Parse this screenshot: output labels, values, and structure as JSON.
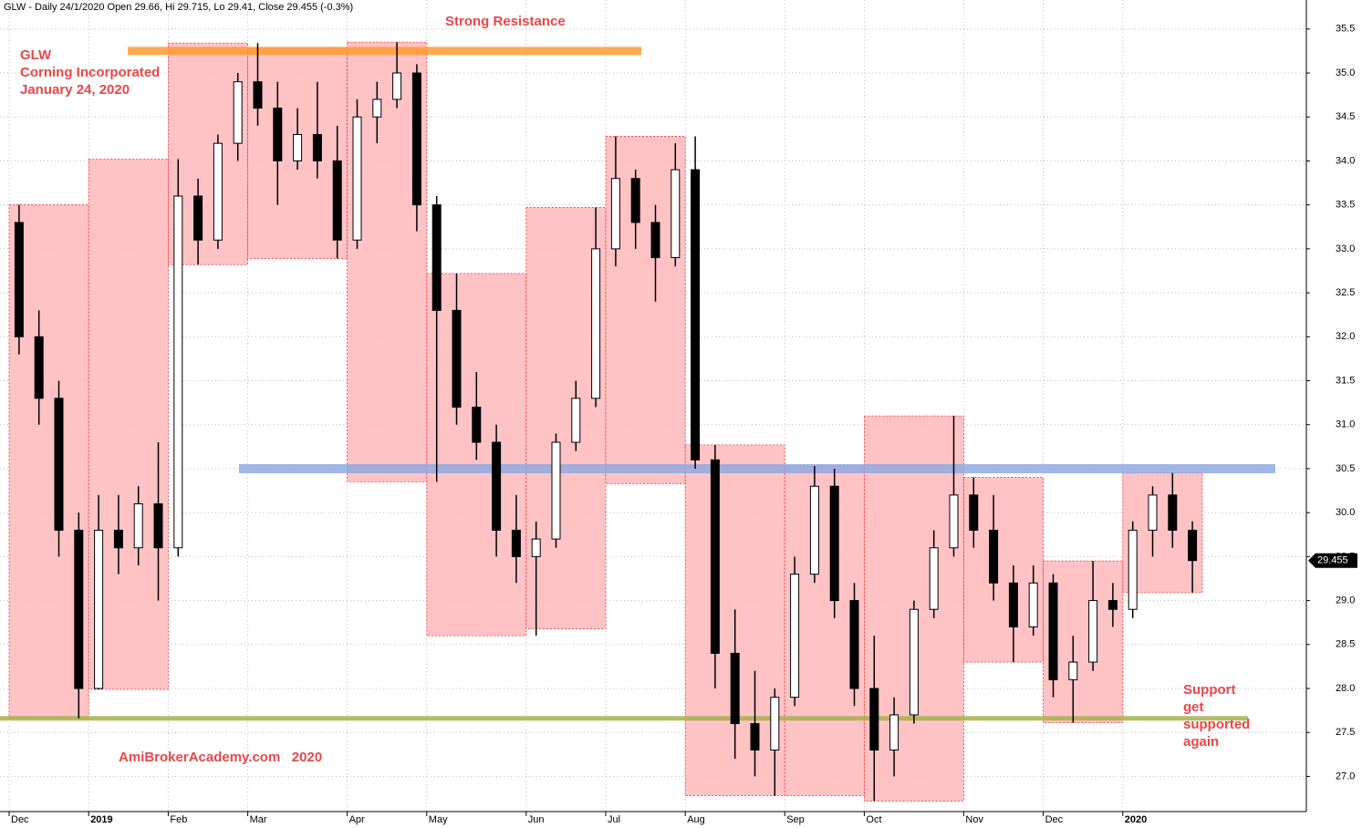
{
  "chart_data": {
    "type": "candlestick",
    "title": "GLW - Daily 24/1/2020 Open 29.66, Hi 29.715, Lo 29.41, Close 29.455 (-0.3%)",
    "categories": [
      "Dec",
      null,
      null,
      null,
      "2019",
      null,
      null,
      null,
      "Feb",
      null,
      null,
      null,
      "Mar",
      null,
      null,
      null,
      null,
      "Apr",
      null,
      null,
      null,
      "May",
      null,
      null,
      null,
      null,
      "Jun",
      null,
      null,
      null,
      "Jul",
      null,
      null,
      null,
      "Aug",
      null,
      null,
      null,
      null,
      "Sep",
      null,
      null,
      null,
      "Oct",
      null,
      null,
      null,
      null,
      "Nov",
      null,
      null,
      null,
      "Dec",
      null,
      null,
      null,
      "2020",
      null,
      null,
      null
    ],
    "open": [
      33.3,
      32.0,
      31.3,
      29.8,
      28.0,
      29.8,
      29.6,
      30.1,
      29.6,
      33.6,
      33.1,
      34.2,
      34.9,
      34.6,
      34.0,
      34.3,
      34.0,
      33.1,
      34.5,
      34.7,
      35.0,
      33.5,
      32.3,
      31.2,
      30.8,
      29.8,
      29.5,
      29.7,
      30.8,
      31.3,
      33.0,
      33.8,
      33.3,
      32.9,
      33.9,
      30.6,
      28.4,
      27.6,
      27.3,
      27.9,
      29.3,
      30.3,
      29.0,
      28.0,
      27.3,
      27.7,
      28.9,
      29.6,
      30.2,
      29.8,
      29.2,
      28.7,
      29.2,
      28.1,
      28.3,
      29.0,
      28.9,
      29.8,
      30.2,
      29.8
    ],
    "high": [
      33.5,
      32.3,
      31.5,
      30.0,
      30.2,
      30.2,
      30.3,
      30.8,
      34.02,
      33.8,
      34.3,
      35.0,
      35.34,
      34.9,
      34.6,
      34.9,
      34.4,
      34.7,
      34.9,
      35.35,
      35.1,
      33.6,
      32.72,
      31.6,
      31.0,
      30.2,
      29.9,
      30.9,
      31.5,
      33.47,
      34.28,
      33.9,
      33.5,
      34.2,
      34.28,
      30.77,
      28.9,
      28.2,
      28.0,
      29.5,
      30.53,
      30.5,
      29.2,
      28.6,
      27.9,
      29.0,
      29.8,
      31.1,
      30.4,
      30.2,
      29.4,
      29.4,
      29.3,
      28.6,
      29.45,
      29.2,
      29.9,
      30.3,
      30.45,
      29.9
    ],
    "low": [
      31.8,
      31.0,
      29.5,
      27.66,
      27.99,
      29.3,
      29.4,
      29.0,
      29.5,
      32.82,
      33.0,
      34.0,
      34.4,
      33.5,
      33.9,
      33.8,
      32.89,
      33.0,
      34.2,
      34.6,
      33.2,
      30.35,
      31.0,
      30.6,
      29.5,
      29.2,
      28.6,
      29.6,
      30.7,
      31.2,
      32.8,
      33.0,
      32.4,
      32.8,
      30.5,
      28.0,
      27.2,
      27.0,
      26.78,
      27.8,
      29.2,
      28.8,
      27.8,
      26.72,
      27.0,
      27.6,
      28.8,
      29.5,
      29.6,
      29.0,
      28.3,
      28.6,
      27.9,
      27.61,
      28.2,
      28.7,
      28.8,
      29.5,
      29.6,
      29.09
    ],
    "close": [
      32.0,
      31.3,
      29.8,
      28.0,
      29.8,
      29.6,
      30.1,
      29.6,
      33.6,
      33.1,
      34.2,
      34.9,
      34.6,
      34.0,
      34.3,
      34.0,
      33.1,
      34.5,
      34.7,
      35.0,
      33.5,
      32.3,
      31.2,
      30.8,
      29.8,
      29.5,
      29.7,
      30.8,
      31.3,
      33.0,
      33.8,
      33.3,
      32.9,
      33.9,
      30.6,
      28.4,
      27.6,
      27.3,
      27.9,
      29.3,
      30.3,
      29.0,
      28.0,
      27.3,
      27.7,
      28.9,
      29.6,
      30.2,
      29.8,
      29.2,
      28.7,
      29.2,
      28.1,
      28.3,
      29.0,
      28.9,
      29.8,
      30.2,
      29.8,
      29.455
    ],
    "range_high": [
      33.5,
      34.02,
      35.34,
      35.28,
      35.35,
      32.72,
      33.47,
      34.28,
      30.77,
      30.53,
      31.1,
      30.4,
      29.45,
      30.45
    ],
    "range_low": [
      27.66,
      27.99,
      32.82,
      32.89,
      30.35,
      28.6,
      28.68,
      30.33,
      26.78,
      26.78,
      26.72,
      28.3,
      27.61,
      29.09
    ],
    "range_color": "#ffbcbf",
    "levels": [
      {
        "value": 35.25,
        "color": "#ff9a33"
      },
      {
        "value": 30.5,
        "color": "#8fa9e0"
      },
      {
        "value": 27.66,
        "color": "#a6b24a"
      }
    ],
    "annotations": [
      "Strong Resistance",
      "GLW",
      "Corning Incorporated",
      "January 24, 2020",
      "AmiBrokerAcademy.com   2020",
      "Support",
      "get",
      "supported",
      "again"
    ],
    "ylim": [
      26.6,
      35.83
    ],
    "yticks": [
      {
        "value": 27,
        "label": "27.0"
      },
      27.5,
      {
        "value": 28,
        "label": "28.0"
      },
      28.5,
      {
        "value": 29,
        "label": "29.0"
      },
      29.5,
      {
        "value": 30,
        "label": "30.0"
      },
      30.5,
      {
        "value": 31,
        "label": "31.0"
      },
      31.5,
      {
        "value": 32,
        "label": "32.0"
      },
      32.5,
      {
        "value": 33,
        "label": "33.0"
      },
      33.5,
      {
        "value": 34,
        "label": "34.0"
      },
      34.5,
      {
        "value": 35,
        "label": "35.0"
      },
      35.5
    ],
    "grid": true
  }
}
